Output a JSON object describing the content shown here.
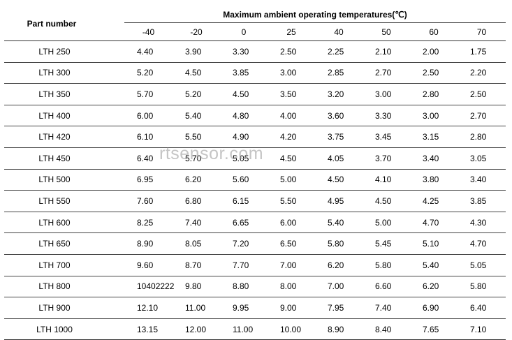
{
  "table": {
    "part_number_header": "Part number",
    "temperature_header": "Maximum ambient operating temperatures(℃)",
    "temperatures": [
      "-40",
      "-20",
      "0",
      "25",
      "40",
      "50",
      "60",
      "70"
    ],
    "rows": [
      {
        "part": "LTH 250",
        "values": [
          "4.40",
          "3.90",
          "3.30",
          "2.50",
          "2.25",
          "2.10",
          "2.00",
          "1.75"
        ]
      },
      {
        "part": "LTH 300",
        "values": [
          "5.20",
          "4.50",
          "3.85",
          "3.00",
          "2.85",
          "2.70",
          "2.50",
          "2.20"
        ]
      },
      {
        "part": "LTH 350",
        "values": [
          "5.70",
          "5.20",
          "4.50",
          "3.50",
          "3.20",
          "3.00",
          "2.80",
          "2.50"
        ]
      },
      {
        "part": "LTH 400",
        "values": [
          "6.00",
          "5.40",
          "4.80",
          "4.00",
          "3.60",
          "3.30",
          "3.00",
          "2.70"
        ]
      },
      {
        "part": "LTH 420",
        "values": [
          "6.10",
          "5.50",
          "4.90",
          "4.20",
          "3.75",
          "3.45",
          "3.15",
          "2.80"
        ]
      },
      {
        "part": "LTH 450",
        "values": [
          "6.40",
          "5.70",
          "5.05",
          "4.50",
          "4.05",
          "3.70",
          "3.40",
          "3.05"
        ]
      },
      {
        "part": "LTH 500",
        "values": [
          "6.95",
          "6.20",
          "5.60",
          "5.00",
          "4.50",
          "4.10",
          "3.80",
          "3.40"
        ]
      },
      {
        "part": "LTH 550",
        "values": [
          "7.60",
          "6.80",
          "6.15",
          "5.50",
          "4.95",
          "4.50",
          "4.25",
          "3.85"
        ]
      },
      {
        "part": "LTH 600",
        "values": [
          "8.25",
          "7.40",
          "6.65",
          "6.00",
          "5.40",
          "5.00",
          "4.70",
          "4.30"
        ]
      },
      {
        "part": "LTH 650",
        "values": [
          "8.90",
          "8.05",
          "7.20",
          "6.50",
          "5.80",
          "5.45",
          "5.10",
          "4.70"
        ]
      },
      {
        "part": "LTH 700",
        "values": [
          "9.60",
          "8.70",
          "7.70",
          "7.00",
          "6.20",
          "5.80",
          "5.40",
          "5.05"
        ]
      },
      {
        "part": "LTH 800",
        "values": [
          "10402222",
          "9.80",
          "8.80",
          "8.00",
          "7.00",
          "6.60",
          "6.20",
          "5.80"
        ]
      },
      {
        "part": "LTH 900",
        "values": [
          "12.10",
          "11.00",
          "9.95",
          "9.00",
          "7.95",
          "7.40",
          "6.90",
          "6.40"
        ]
      },
      {
        "part": "LTH 1000",
        "values": [
          "13.15",
          "12.00",
          "11.00",
          "10.00",
          "8.90",
          "8.40",
          "7.65",
          "7.10"
        ]
      }
    ]
  },
  "watermark": "rtsensor.com"
}
